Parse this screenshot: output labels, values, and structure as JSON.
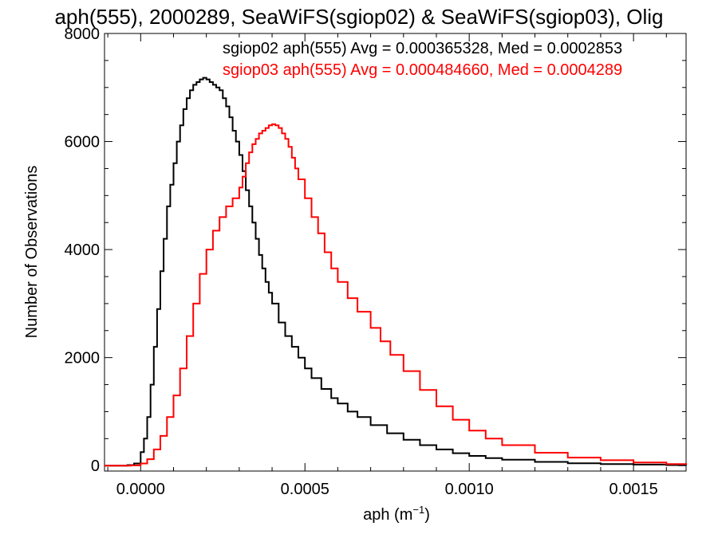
{
  "chart_data": {
    "type": "line",
    "title": "aph(555), 2000289, SeaWiFS(sgiop02) & SeaWiFS(sgiop03), Olig",
    "xlabel_base": "aph (m",
    "xlabel_sup": "−1",
    "xlabel_close": ")",
    "ylabel": "Number of Observations",
    "xlim": [
      -0.00011,
      0.00166
    ],
    "ylim": [
      -100,
      8000
    ],
    "xticks": [
      {
        "value": 0.0,
        "label": "0.0000"
      },
      {
        "value": 0.0005,
        "label": "0.0005"
      },
      {
        "value": 0.001,
        "label": "0.0010"
      },
      {
        "value": 0.0015,
        "label": "0.0015"
      }
    ],
    "yticks": [
      {
        "value": 0,
        "label": "0"
      },
      {
        "value": 2000,
        "label": "2000"
      },
      {
        "value": 4000,
        "label": "4000"
      },
      {
        "value": 6000,
        "label": "6000"
      },
      {
        "value": 8000,
        "label": "8000"
      }
    ],
    "grid": false,
    "legend_placement": "top-right",
    "series": [
      {
        "name": "sgiop02",
        "color": "#000000",
        "legend": "sgiop02 aph(555) Avg = 0.000365328, Med = 0.0002853",
        "points": [
          [
            -0.00011,
            0
          ],
          [
            -4e-05,
            10
          ],
          [
            -2e-05,
            40
          ],
          [
            0.0,
            250
          ],
          [
            1e-05,
            500
          ],
          [
            2e-05,
            900
          ],
          [
            3e-05,
            1500
          ],
          [
            4e-05,
            2200
          ],
          [
            5e-05,
            2900
          ],
          [
            6e-05,
            3600
          ],
          [
            7e-05,
            4200
          ],
          [
            8e-05,
            4800
          ],
          [
            9e-05,
            5200
          ],
          [
            0.0001,
            5600
          ],
          [
            0.00011,
            6000
          ],
          [
            0.00012,
            6300
          ],
          [
            0.00013,
            6600
          ],
          [
            0.00014,
            6800
          ],
          [
            0.00015,
            6950
          ],
          [
            0.00016,
            7050
          ],
          [
            0.00017,
            7100
          ],
          [
            0.00018,
            7150
          ],
          [
            0.00019,
            7180
          ],
          [
            0.0002,
            7150
          ],
          [
            0.00021,
            7100
          ],
          [
            0.00022,
            7050
          ],
          [
            0.00023,
            7000
          ],
          [
            0.00024,
            6950
          ],
          [
            0.00025,
            6800
          ],
          [
            0.00026,
            6650
          ],
          [
            0.00027,
            6450
          ],
          [
            0.00028,
            6200
          ],
          [
            0.00029,
            6000
          ],
          [
            0.0003,
            5750
          ],
          [
            0.00031,
            5450
          ],
          [
            0.00032,
            5100
          ],
          [
            0.00033,
            4800
          ],
          [
            0.00034,
            4500
          ],
          [
            0.00035,
            4200
          ],
          [
            0.00036,
            3900
          ],
          [
            0.00037,
            3650
          ],
          [
            0.00038,
            3400
          ],
          [
            0.00039,
            3200
          ],
          [
            0.0004,
            3000
          ],
          [
            0.00042,
            2650
          ],
          [
            0.00044,
            2400
          ],
          [
            0.00046,
            2200
          ],
          [
            0.00048,
            2000
          ],
          [
            0.0005,
            1800
          ],
          [
            0.00052,
            1620
          ],
          [
            0.00055,
            1420
          ],
          [
            0.00058,
            1250
          ],
          [
            0.0006,
            1150
          ],
          [
            0.00063,
            1000
          ],
          [
            0.00066,
            900
          ],
          [
            0.0007,
            750
          ],
          [
            0.00075,
            600
          ],
          [
            0.0008,
            480
          ],
          [
            0.00085,
            380
          ],
          [
            0.0009,
            300
          ],
          [
            0.00095,
            230
          ],
          [
            0.001,
            180
          ],
          [
            0.00105,
            140
          ],
          [
            0.0011,
            110
          ],
          [
            0.0012,
            70
          ],
          [
            0.0013,
            45
          ],
          [
            0.0014,
            30
          ],
          [
            0.0015,
            20
          ],
          [
            0.0016,
            10
          ],
          [
            0.00166,
            5
          ]
        ]
      },
      {
        "name": "sgiop03",
        "color": "#ff0000",
        "legend": "sgiop03 aph(555) Avg = 0.000484660, Med = 0.0004289",
        "points": [
          [
            -0.00011,
            0
          ],
          [
            -3e-05,
            5
          ],
          [
            0.0,
            40
          ],
          [
            2e-05,
            120
          ],
          [
            4e-05,
            300
          ],
          [
            6e-05,
            550
          ],
          [
            8e-05,
            900
          ],
          [
            0.0001,
            1300
          ],
          [
            0.00012,
            1800
          ],
          [
            0.00014,
            2400
          ],
          [
            0.00016,
            3000
          ],
          [
            0.00018,
            3550
          ],
          [
            0.0002,
            4000
          ],
          [
            0.00022,
            4350
          ],
          [
            0.00024,
            4600
          ],
          [
            0.00026,
            4800
          ],
          [
            0.00028,
            4950
          ],
          [
            0.0003,
            5150
          ],
          [
            0.00031,
            5350
          ],
          [
            0.00032,
            5600
          ],
          [
            0.00033,
            5800
          ],
          [
            0.00034,
            5950
          ],
          [
            0.00035,
            6050
          ],
          [
            0.00036,
            6150
          ],
          [
            0.00037,
            6200
          ],
          [
            0.00038,
            6250
          ],
          [
            0.00039,
            6300
          ],
          [
            0.0004,
            6320
          ],
          [
            0.00041,
            6300
          ],
          [
            0.00042,
            6250
          ],
          [
            0.00043,
            6150
          ],
          [
            0.00044,
            6050
          ],
          [
            0.00045,
            5900
          ],
          [
            0.00046,
            5700
          ],
          [
            0.00047,
            5500
          ],
          [
            0.00048,
            5300
          ],
          [
            0.0005,
            4950
          ],
          [
            0.00052,
            4600
          ],
          [
            0.00054,
            4300
          ],
          [
            0.00056,
            3950
          ],
          [
            0.00058,
            3650
          ],
          [
            0.0006,
            3400
          ],
          [
            0.00063,
            3100
          ],
          [
            0.00066,
            2850
          ],
          [
            0.0007,
            2550
          ],
          [
            0.00073,
            2300
          ],
          [
            0.00076,
            2050
          ],
          [
            0.0008,
            1750
          ],
          [
            0.00085,
            1400
          ],
          [
            0.0009,
            1100
          ],
          [
            0.00095,
            850
          ],
          [
            0.001,
            650
          ],
          [
            0.00105,
            500
          ],
          [
            0.0011,
            380
          ],
          [
            0.0012,
            240
          ],
          [
            0.0013,
            150
          ],
          [
            0.0014,
            100
          ],
          [
            0.0015,
            60
          ],
          [
            0.0016,
            30
          ],
          [
            0.00166,
            15
          ]
        ]
      }
    ]
  }
}
